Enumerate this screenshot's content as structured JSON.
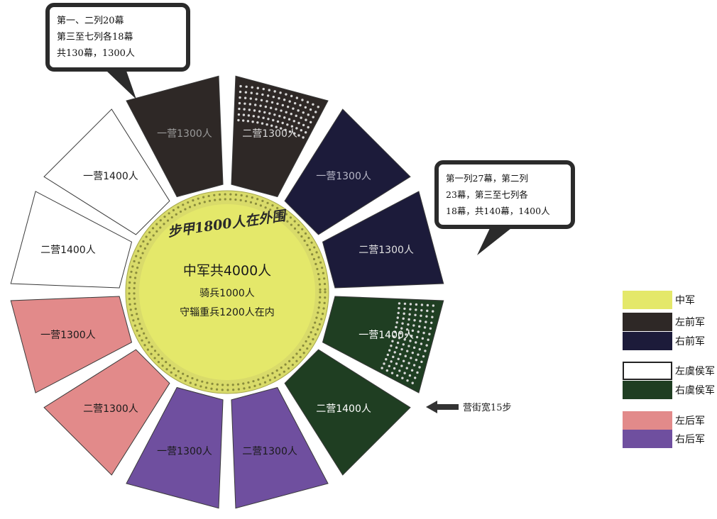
{
  "center": {
    "line1": "中军共4000人",
    "line2": "骑兵1000人",
    "line3": "守辎重兵1200人在内"
  },
  "ring_label": "步甲1800人在外围",
  "segments": [
    {
      "label": "一营1300人",
      "group": "left_front",
      "color": "#2e2826",
      "text_color": "#9a9a9a"
    },
    {
      "label": "二营1300人",
      "group": "left_front",
      "color": "#2e2826",
      "text_color": "#d8d8d8",
      "dots": true
    },
    {
      "label": "一营1300人",
      "group": "right_front",
      "color": "#1c1b3a",
      "text_color": "#b8b8c8"
    },
    {
      "label": "二营1300人",
      "group": "right_front",
      "color": "#1c1b3a",
      "text_color": "#e0e0e0"
    },
    {
      "label": "一营1400人",
      "group": "right_flank",
      "color": "#1f3e22",
      "text_color": "#ffffff",
      "dots": true
    },
    {
      "label": "二营1400人",
      "group": "right_flank",
      "color": "#1f3e22",
      "text_color": "#ffffff"
    },
    {
      "label": "二营1300人",
      "group": "right_rear",
      "color": "#6f4f9f",
      "text_color": "#1a1a1a"
    },
    {
      "label": "一营1300人",
      "group": "right_rear",
      "color": "#6f4f9f",
      "text_color": "#1a1a1a"
    },
    {
      "label": "二营1300人",
      "group": "left_rear",
      "color": "#e28a8a",
      "text_color": "#1a1a1a"
    },
    {
      "label": "一营1300人",
      "group": "left_rear",
      "color": "#e28a8a",
      "text_color": "#1a1a1a"
    },
    {
      "label": "二营1400人",
      "group": "left_flank",
      "color": "#ffffff",
      "text_color": "#1a1a1a"
    },
    {
      "label": "一营1400人",
      "group": "left_flank",
      "color": "#ffffff",
      "text_color": "#1a1a1a"
    }
  ],
  "callout_top": {
    "lines": [
      "第一、二列20幕",
      "第三至七列各18幕",
      "共130幕，1300人"
    ]
  },
  "callout_right": {
    "lines": [
      "第一列27幕，第二列",
      "23幕，第三至七列各",
      "18幕，共140幕，1400人"
    ]
  },
  "street_label": "营街宽15步",
  "legend": [
    {
      "label": "中军",
      "color": "#e4e86a"
    },
    {
      "label": "左前军",
      "color": "#2e2826"
    },
    {
      "label": "右前军",
      "color": "#1c1b3a"
    },
    {
      "label": "左虞侯军",
      "color": "#ffffff"
    },
    {
      "label": "右虞侯军",
      "color": "#1f3e22"
    },
    {
      "label": "左后军",
      "color": "#e28a8a"
    },
    {
      "label": "右后军",
      "color": "#6f4f9f"
    }
  ],
  "colors": {
    "center": "#e4e86a",
    "ring": "#d9db6a",
    "ring_border": "#a6a84a",
    "border": "#3a3a3a",
    "arrow": "#333333"
  }
}
